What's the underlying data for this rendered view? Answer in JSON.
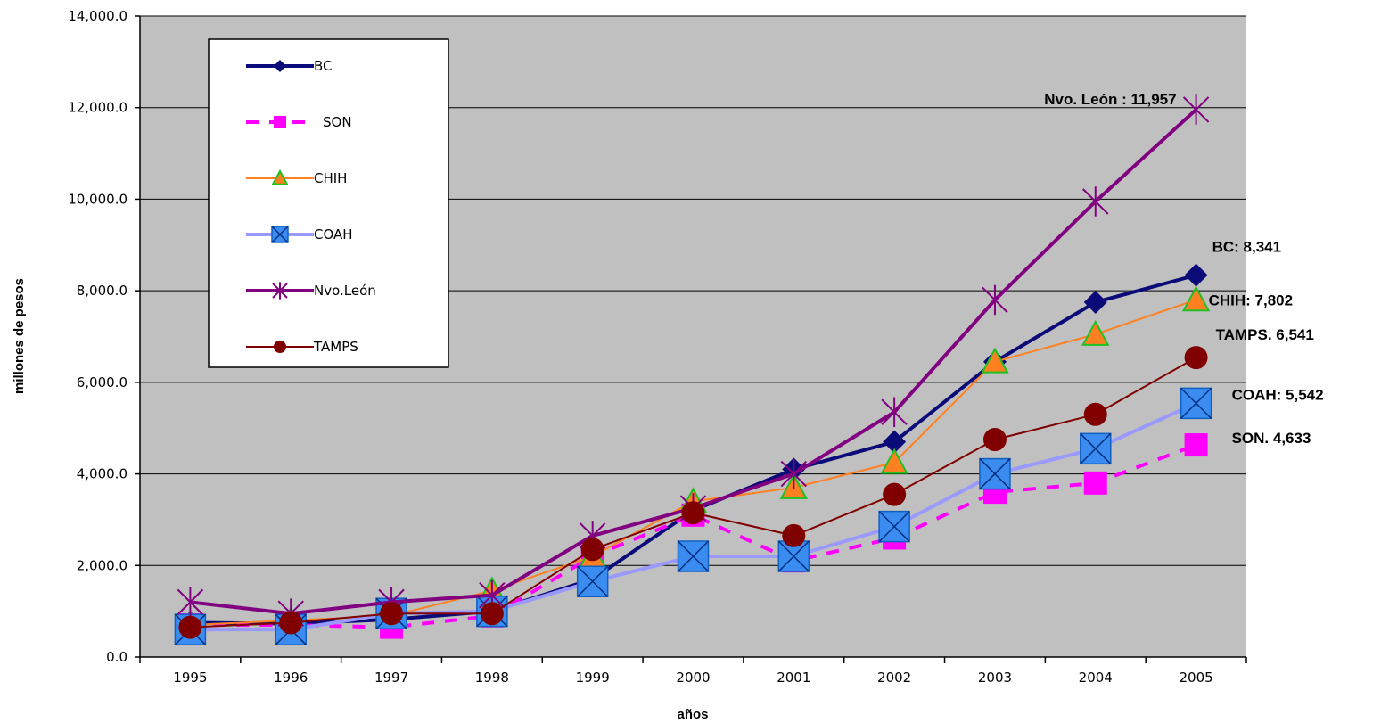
{
  "chart_data": {
    "type": "line",
    "title": "",
    "xlabel": "años",
    "ylabel": "millones de pesos",
    "ylim": [
      0,
      14000
    ],
    "yticks": [
      "0.0",
      "2,000.0",
      "4,000.0",
      "6,000.0",
      "8,000.0",
      "10,000.0",
      "12,000.0",
      "14,000.0"
    ],
    "grid": true,
    "legend_position": "top-left",
    "categories": [
      "1995",
      "1996",
      "1997",
      "1998",
      "1999",
      "2000",
      "2001",
      "2002",
      "2003",
      "2004",
      "2005"
    ],
    "series": [
      {
        "name": "BC",
        "color": "#0a0a78",
        "marker": "diamond",
        "values": [
          750,
          730,
          820,
          1000,
          1700,
          3200,
          4100,
          4700,
          6450,
          7750,
          8341
        ]
      },
      {
        "name": "SON",
        "color": "#ff00ff",
        "marker": "square",
        "dashed": true,
        "values": [
          700,
          700,
          650,
          900,
          2200,
          3100,
          2100,
          2600,
          3600,
          3800,
          4633
        ]
      },
      {
        "name": "CHIH",
        "color": "#ff8020",
        "marker": "triangle",
        "values": [
          700,
          800,
          900,
          1450,
          2200,
          3400,
          3700,
          4250,
          6450,
          7050,
          7802
        ]
      },
      {
        "name": "COAH",
        "color": "#9999ff",
        "marker": "box-x",
        "values": [
          600,
          600,
          950,
          1000,
          1650,
          2200,
          2200,
          2850,
          4000,
          4550,
          5542
        ]
      },
      {
        "name": "Nvo.León",
        "color": "#800080",
        "marker": "star",
        "values": [
          1200,
          950,
          1200,
          1350,
          2650,
          3250,
          4000,
          5350,
          7800,
          9950,
          11957
        ]
      },
      {
        "name": "TAMPS",
        "color": "#800000",
        "marker": "circle",
        "values": [
          650,
          750,
          950,
          950,
          2350,
          3150,
          2650,
          3550,
          4750,
          5300,
          6541
        ]
      }
    ],
    "annotations": [
      {
        "text": "Nvo. León : 11,957",
        "series": "Nvo.León"
      },
      {
        "text": "BC:   8,341",
        "series": "BC"
      },
      {
        "text": "CHIH: 7,802",
        "series": "CHIH"
      },
      {
        "text": "TAMPS.  6,541",
        "series": "TAMPS"
      },
      {
        "text": "COAH: 5,542",
        "series": "COAH"
      },
      {
        "text": "SON.  4,633",
        "series": "SON"
      }
    ]
  }
}
